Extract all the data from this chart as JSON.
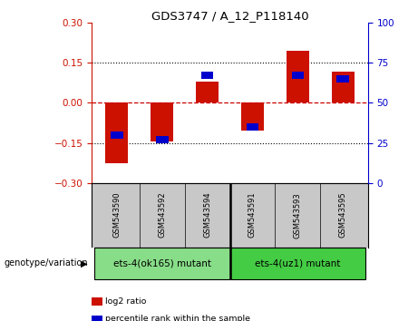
{
  "title": "GDS3747 / A_12_P118140",
  "samples": [
    "GSM543590",
    "GSM543592",
    "GSM543594",
    "GSM543591",
    "GSM543593",
    "GSM543595"
  ],
  "log2_ratio": [
    -0.225,
    -0.145,
    0.08,
    -0.105,
    0.195,
    0.115
  ],
  "percentile_rank": [
    30,
    27,
    67,
    35,
    67,
    65
  ],
  "groups": [
    {
      "label": "ets-4(ok165) mutant",
      "indices": [
        0,
        1,
        2
      ],
      "color": "#88DD88"
    },
    {
      "label": "ets-4(uz1) mutant",
      "indices": [
        3,
        4,
        5
      ],
      "color": "#44CC44"
    }
  ],
  "bar_color_red": "#CC1100",
  "bar_color_blue": "#0000CC",
  "ylim_left": [
    -0.3,
    0.3
  ],
  "ylim_right": [
    0,
    100
  ],
  "yticks_left": [
    -0.3,
    -0.15,
    0,
    0.15,
    0.3
  ],
  "yticks_right": [
    0,
    25,
    50,
    75,
    100
  ],
  "hline_color": "#CC0000",
  "dotted_line_color": "#000000",
  "plot_bg": "#FFFFFF",
  "tick_label_area_bg": "#C8C8C8",
  "bar_width": 0.5,
  "genotype_label": "genotype/variation",
  "legend_items": [
    {
      "label": "log2 ratio",
      "color": "#CC1100"
    },
    {
      "label": "percentile rank within the sample",
      "color": "#0000CC"
    }
  ]
}
